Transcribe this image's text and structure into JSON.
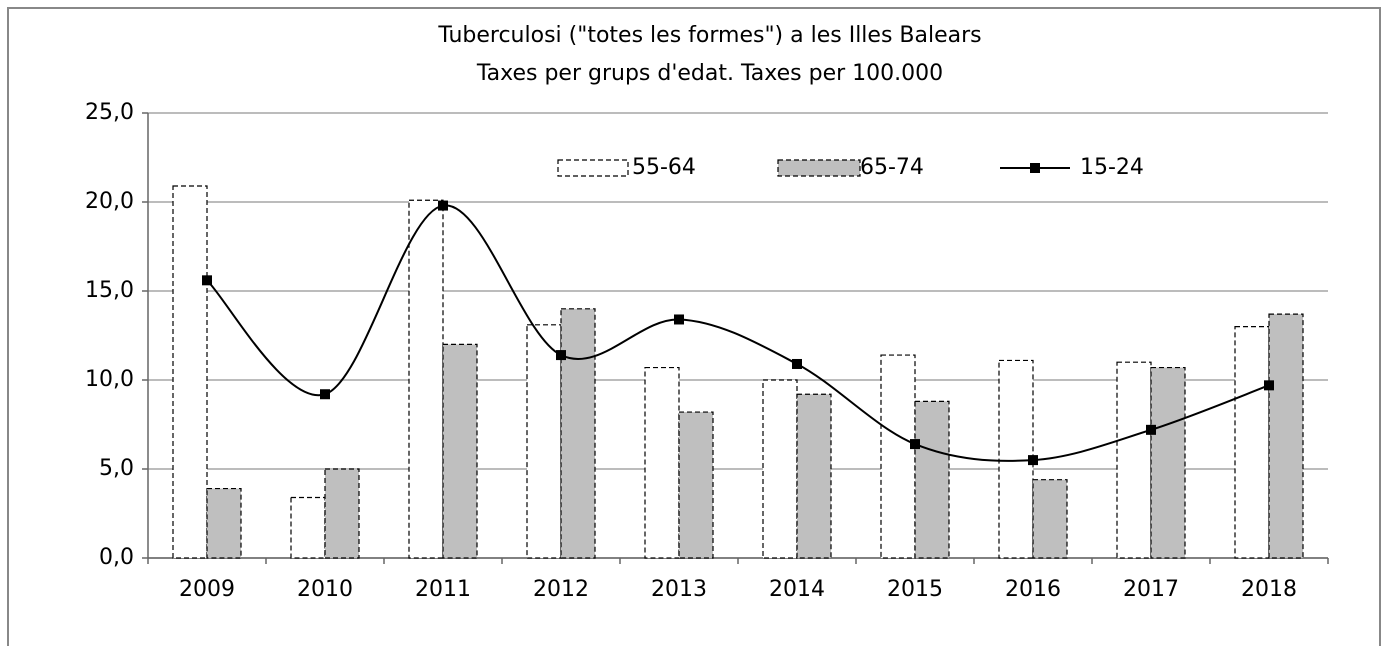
{
  "chart_data": {
    "type": "bar",
    "title": "Tuberculosi (\"totes les formes\") a les Illes Balears",
    "subtitle": "Taxes per grups d'edat. Taxes per 100.000",
    "categories": [
      "2009",
      "2010",
      "2011",
      "2012",
      "2013",
      "2014",
      "2015",
      "2016",
      "2017",
      "2018"
    ],
    "series": [
      {
        "name": "55-64",
        "type": "bar",
        "color": "#ffffff",
        "values": [
          20.9,
          3.4,
          20.1,
          13.1,
          10.7,
          10.0,
          11.4,
          11.1,
          11.0,
          13.0
        ]
      },
      {
        "name": "65-74",
        "type": "bar",
        "color": "#bfbfbf",
        "values": [
          3.9,
          5.0,
          12.0,
          14.0,
          8.2,
          9.2,
          8.8,
          4.4,
          10.7,
          13.7
        ]
      },
      {
        "name": "15-24",
        "type": "line",
        "color": "#000000",
        "values": [
          15.6,
          9.2,
          19.8,
          11.4,
          13.4,
          10.9,
          6.4,
          5.5,
          7.2,
          9.7
        ]
      }
    ],
    "ylim": [
      0,
      25
    ],
    "yticks": [
      {
        "value": 0,
        "label": "0,0"
      },
      {
        "value": 5,
        "label": "5,0"
      },
      {
        "value": 10,
        "label": "10,0"
      },
      {
        "value": 15,
        "label": "15,0"
      },
      {
        "value": 20,
        "label": "20,0"
      },
      {
        "value": 25,
        "label": "25,0"
      }
    ],
    "grid": true,
    "legend": "top"
  }
}
